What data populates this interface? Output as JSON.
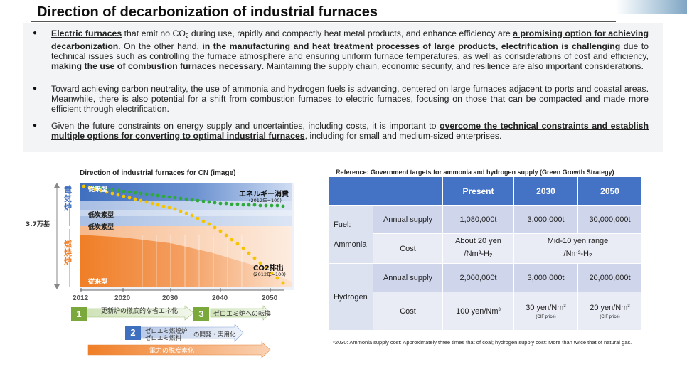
{
  "header": {
    "title": "Direction of decarbonization of industrial furnaces"
  },
  "bullets": {
    "b1": {
      "u1": "Electric furnaces",
      "t1": " that emit no CO",
      "sub1": "2",
      "t2": " during use, rapidly and compactly heat metal products, and enhance efficiency are ",
      "u2": "a promising option for achieving decarbonization",
      "t3": ". On the other hand, ",
      "u3": "in the manufacturing and heat treatment processes of large products, electrification is challenging",
      "t4": " due to technical issues such as controlling the furnace atmosphere and ensuring uniform furnace temperatures, as well as considerations of cost and efficiency, ",
      "u4": "making the use of combustion furnaces necessary",
      "t5": ". Maintaining the supply chain, economic security, and resilience are also important considerations."
    },
    "b2": {
      "text": "Toward achieving carbon neutrality, the use of ammonia and hydrogen fuels is advancing, centered on large furnaces adjacent to ports and coastal areas. Meanwhile, there is also potential for a shift from combustion furnaces to electric furnaces, focusing on those that can be compacted and made more efficient through electrification."
    },
    "b3": {
      "t1": "Given the future constraints on energy supply and uncertainties, including costs, it is important to ",
      "u1": "overcome the technical constraints and establish multiple options for converting to optimal industrial furnaces",
      "t2": ", including for small and medium-sized enterprises."
    }
  },
  "chart": {
    "title": "Direction of industrial furnaces for CN (image)",
    "electric_label": "電気炉",
    "combustion_label": "燃焼炉",
    "total_label": "3.7万基",
    "conventional_top": "従来型",
    "low_carbon_1": "低炭素型",
    "low_carbon_2": "低炭素型",
    "conventional_bottom": "従来型",
    "energy_label": "エネルギー消費",
    "energy_sub": "(2012年=100)",
    "co2_label": "CO2排出",
    "co2_sub": "(2012年=100)",
    "years": [
      "2012",
      "2020",
      "2030",
      "2040",
      "2050"
    ],
    "steps": {
      "s1_num": "1",
      "s1_text": "更新炉の徹底的な省エネ化",
      "s3_num": "3",
      "s3_text": "ゼロエミ炉への転換",
      "s2_num": "2",
      "s2_line1": "ゼロエミ燃焼炉",
      "s2_line2": "ゼロエミ燃料",
      "s2_tail": "の開発・実用化",
      "power_text": "電力の脱炭素化"
    },
    "colors": {
      "electric_blue": "#4a78c2",
      "combustion_orange": "#f07e26",
      "dots_green": "#2eaa3a",
      "dots_yellow": "#f5c400",
      "step_green": "#7aa83a",
      "step_blue": "#3f6fbf"
    }
  },
  "reference": {
    "title": "Reference: Government targets for ammonia and hydrogen supply (Green Growth Strategy)",
    "headers": [
      "Present",
      "2030",
      "2050"
    ],
    "ammonia": {
      "group_line1": "Fuel:",
      "group_line2": "Ammonia",
      "supply_label": "Annual supply",
      "supply": [
        "1,080,000t",
        "3,000,000t",
        "30,000,000t"
      ],
      "cost_label": "Cost",
      "cost_present_1": "About 20 yen",
      "cost_present_2": "/Nm³-H",
      "cost_present_sub": "2",
      "cost_future_1": "Mid-10 yen range",
      "cost_future_2": "/Nm³-H",
      "cost_future_sub": "2"
    },
    "hydrogen": {
      "group": "Hydrogen",
      "supply_label": "Annual supply",
      "supply": [
        "2,000,000t",
        "3,000,000t",
        "20,000,000t"
      ],
      "cost_label": "Cost",
      "cost_present": "100 yen/Nm",
      "cost_present_sup": "3",
      "cost_2030": "30 yen/Nm",
      "cost_2030_sup": "3",
      "cost_2030_note": "(CIF price)",
      "cost_2050": "20 yen/Nm",
      "cost_2050_sup": "3",
      "cost_2050_note": "(CIF price)"
    },
    "footnote": "*2030: Ammonia supply cost: Approximately three times that of coal; hydrogen supply cost: More than twice that of natural gas."
  }
}
